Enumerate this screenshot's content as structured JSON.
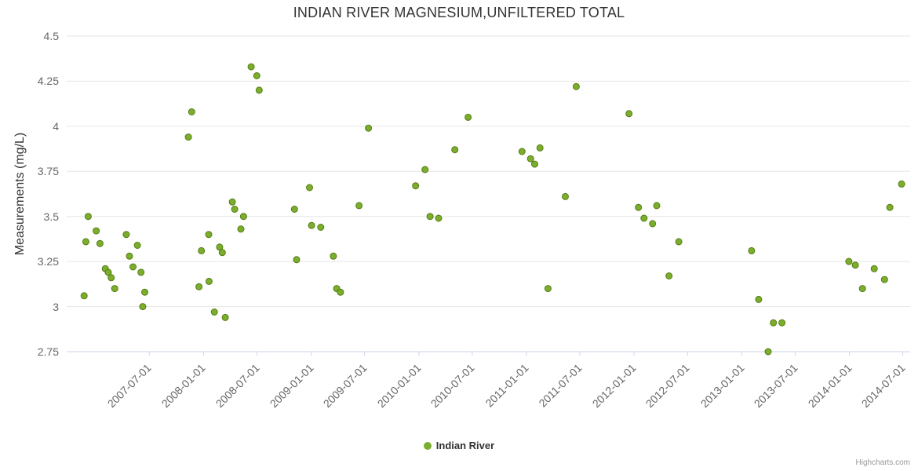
{
  "legend": {
    "label": "Indian River"
  },
  "credits": "Highcharts.com",
  "colors": {
    "marker_fill": "#7cae2d",
    "marker_stroke": "#557c14",
    "grid": "#e6e6e6",
    "axis_line": "#ccd6eb",
    "title_text": "#333333",
    "label_text": "#666666"
  },
  "chart_data": {
    "type": "scatter",
    "title": "INDIAN RIVER MAGNESIUM,UNFILTERED TOTAL",
    "xlabel": "",
    "ylabel": "Measurements (mg/L)",
    "grid": "horizontal",
    "legend_position": "bottom-center",
    "xaxis": {
      "type": "datetime",
      "min": "2006-09-24",
      "max": "2014-07-26",
      "label_rotation": -45,
      "ticks": [
        "2007-07-01",
        "2008-01-01",
        "2008-07-01",
        "2009-01-01",
        "2009-07-01",
        "2010-01-01",
        "2010-07-01",
        "2011-01-01",
        "2011-07-01",
        "2012-01-01",
        "2012-07-01",
        "2013-01-01",
        "2013-07-01",
        "2014-01-01",
        "2014-07-01"
      ]
    },
    "yaxis": {
      "min": 2.75,
      "max": 4.5,
      "tick_interval": 0.25,
      "ticks": [
        {
          "value": 4.5,
          "label": "4.5"
        },
        {
          "value": 4.25,
          "label": "4.25"
        },
        {
          "value": 4.0,
          "label": "4"
        },
        {
          "value": 3.75,
          "label": "3.75"
        },
        {
          "value": 3.5,
          "label": "3.5"
        },
        {
          "value": 3.25,
          "label": "3.25"
        },
        {
          "value": 3.0,
          "label": "3"
        },
        {
          "value": 2.75,
          "label": "2.75"
        }
      ]
    },
    "series": [
      {
        "name": "Indian River",
        "color": "#7cae2d",
        "points": [
          [
            "2006-11-22",
            3.06
          ],
          [
            "2006-11-28",
            3.36
          ],
          [
            "2006-12-06",
            3.5
          ],
          [
            "2007-01-02",
            3.42
          ],
          [
            "2007-01-15",
            3.35
          ],
          [
            "2007-02-02",
            3.21
          ],
          [
            "2007-02-12",
            3.19
          ],
          [
            "2007-02-22",
            3.16
          ],
          [
            "2007-03-06",
            3.1
          ],
          [
            "2007-04-14",
            3.4
          ],
          [
            "2007-04-25",
            3.28
          ],
          [
            "2007-05-07",
            3.22
          ],
          [
            "2007-05-22",
            3.34
          ],
          [
            "2007-06-03",
            3.19
          ],
          [
            "2007-06-09",
            3.0
          ],
          [
            "2007-06-16",
            3.08
          ],
          [
            "2007-11-11",
            3.94
          ],
          [
            "2007-11-22",
            4.08
          ],
          [
            "2007-12-17",
            3.11
          ],
          [
            "2007-12-25",
            3.31
          ],
          [
            "2008-01-19",
            3.4
          ],
          [
            "2008-01-20",
            3.14
          ],
          [
            "2008-02-07",
            2.97
          ],
          [
            "2008-02-25",
            3.33
          ],
          [
            "2008-03-05",
            3.3
          ],
          [
            "2008-03-15",
            2.94
          ],
          [
            "2008-04-08",
            3.58
          ],
          [
            "2008-04-16",
            3.54
          ],
          [
            "2008-05-07",
            3.43
          ],
          [
            "2008-05-16",
            3.5
          ],
          [
            "2008-06-11",
            4.33
          ],
          [
            "2008-06-30",
            4.28
          ],
          [
            "2008-07-08",
            4.2
          ],
          [
            "2008-11-05",
            3.54
          ],
          [
            "2008-11-12",
            3.26
          ],
          [
            "2008-12-26",
            3.66
          ],
          [
            "2009-01-02",
            3.45
          ],
          [
            "2009-02-02",
            3.44
          ],
          [
            "2009-03-17",
            3.28
          ],
          [
            "2009-03-28",
            3.1
          ],
          [
            "2009-04-10",
            3.08
          ],
          [
            "2009-06-12",
            3.56
          ],
          [
            "2009-07-14",
            3.99
          ],
          [
            "2009-12-21",
            3.67
          ],
          [
            "2010-01-22",
            3.76
          ],
          [
            "2010-02-08",
            3.5
          ],
          [
            "2010-03-09",
            3.49
          ],
          [
            "2010-05-03",
            3.87
          ],
          [
            "2010-06-17",
            4.05
          ],
          [
            "2010-12-17",
            3.86
          ],
          [
            "2011-01-15",
            3.82
          ],
          [
            "2011-01-29",
            3.79
          ],
          [
            "2011-02-16",
            3.88
          ],
          [
            "2011-03-15",
            3.1
          ],
          [
            "2011-05-13",
            3.61
          ],
          [
            "2011-06-19",
            4.22
          ],
          [
            "2011-12-15",
            4.07
          ],
          [
            "2012-01-16",
            3.55
          ],
          [
            "2012-02-04",
            3.49
          ],
          [
            "2012-03-04",
            3.46
          ],
          [
            "2012-03-18",
            3.56
          ],
          [
            "2012-04-29",
            3.17
          ],
          [
            "2012-06-01",
            3.36
          ],
          [
            "2013-02-03",
            3.31
          ],
          [
            "2013-02-27",
            3.04
          ],
          [
            "2013-03-31",
            2.75
          ],
          [
            "2013-04-18",
            2.91
          ],
          [
            "2013-05-17",
            2.91
          ],
          [
            "2013-12-30",
            3.25
          ],
          [
            "2014-01-21",
            3.23
          ],
          [
            "2014-02-14",
            3.1
          ],
          [
            "2014-03-26",
            3.21
          ],
          [
            "2014-04-30",
            3.15
          ],
          [
            "2014-05-18",
            3.55
          ],
          [
            "2014-06-27",
            3.68
          ]
        ]
      }
    ]
  }
}
